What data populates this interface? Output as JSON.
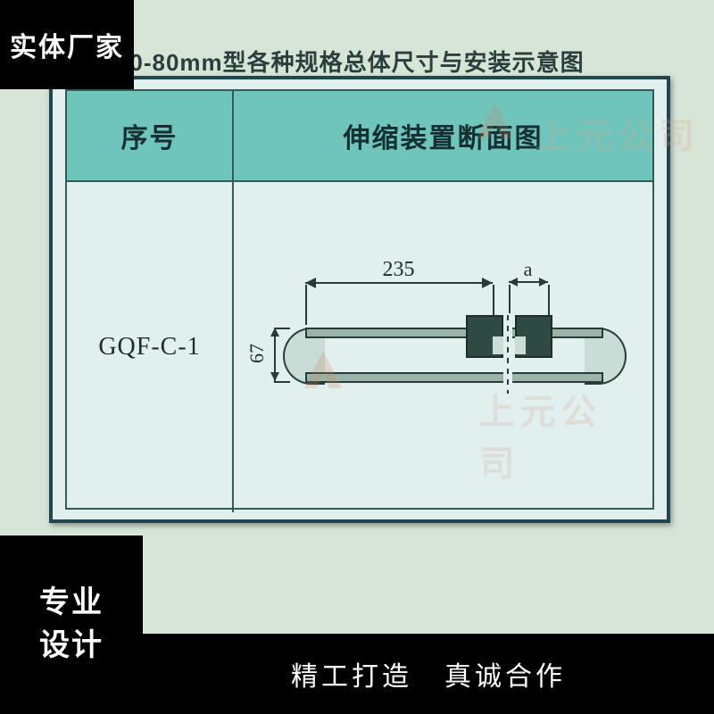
{
  "badges": {
    "top_left": "实体厂家",
    "bottom_left": "专业\n设计",
    "bottom_strip_left": "精工打造",
    "bottom_strip_right": "真诚合作"
  },
  "document": {
    "title": "0-80mm型各种规格总体尺寸与安装示意图",
    "columns": {
      "index": "序号",
      "section": "伸缩装置断面图"
    },
    "row": {
      "code": "GQF-C-1"
    }
  },
  "diagram": {
    "type": "engineering-cross-section",
    "dim_top_value": "235",
    "dim_gap_label": "a",
    "dim_height_value": "67",
    "units": "mm",
    "colors": {
      "stroke": "#273c37",
      "block_fill": "#2f4a42",
      "plate_fill": "#9ab4a9",
      "bg": "#c9dcd6"
    }
  },
  "theme": {
    "page_bg": "#d6e5d6",
    "card_bg": "#e2efef",
    "header_bg": "#6fc5bb",
    "border": "#355b55",
    "badge_bg": "#000000",
    "badge_text": "#ffffff"
  },
  "watermark": {
    "text": "上元公司",
    "logo_color": "#d08060"
  }
}
